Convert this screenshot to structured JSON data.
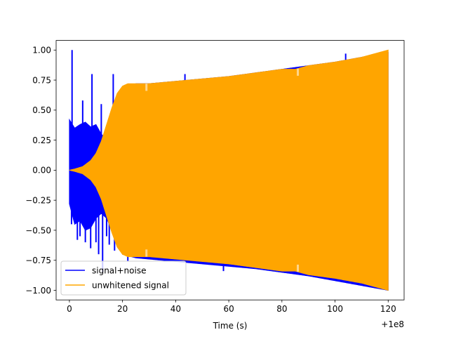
{
  "chart_data": {
    "type": "line",
    "title": "",
    "xlabel": "Time (s)",
    "ylabel": "",
    "x_offset_label": "+1e8",
    "xlim": [
      -5,
      126
    ],
    "ylim": [
      -1.08,
      1.08
    ],
    "x_ticks": [
      0,
      20,
      40,
      60,
      80,
      100,
      120
    ],
    "x_tick_labels": [
      "0",
      "20",
      "40",
      "60",
      "80",
      "100",
      "120"
    ],
    "y_ticks": [
      -1.0,
      -0.75,
      -0.5,
      -0.25,
      0.0,
      0.25,
      0.5,
      0.75,
      1.0
    ],
    "y_tick_labels": [
      "−1.00",
      "−0.75",
      "−0.50",
      "−0.25",
      "0.00",
      "0.25",
      "0.50",
      "0.75",
      "1.00"
    ],
    "grid": false,
    "legend_position": "lower-left",
    "series": [
      {
        "name": "signal+noise",
        "color": "#0000ff",
        "envelope_x": [
          0,
          2,
          4,
          6,
          8,
          10,
          12,
          14,
          16,
          18,
          20,
          25,
          30,
          40,
          50,
          60,
          70,
          80,
          90,
          100,
          110,
          120
        ],
        "envelope_upper": [
          0.42,
          0.35,
          0.38,
          0.4,
          0.36,
          0.38,
          0.3,
          0.26,
          0.3,
          0.45,
          0.62,
          0.72,
          0.72,
          0.74,
          0.76,
          0.78,
          0.81,
          0.84,
          0.87,
          0.9,
          0.94,
          0.98
        ],
        "envelope_lower": [
          -0.28,
          -0.45,
          -0.42,
          -0.5,
          -0.48,
          -0.4,
          -0.36,
          -0.4,
          -0.5,
          -0.62,
          -0.7,
          -0.73,
          -0.74,
          -0.76,
          -0.78,
          -0.8,
          -0.82,
          -0.85,
          -0.88,
          -0.92,
          -0.96,
          -1.0
        ],
        "spikes": [
          {
            "x": 0.2,
            "y": 0.41
          },
          {
            "x": 1.0,
            "y": 1.0
          },
          {
            "x": 0.8,
            "y": -0.45
          },
          {
            "x": 3.0,
            "y": -0.58
          },
          {
            "x": 4.0,
            "y": -0.55
          },
          {
            "x": 5.0,
            "y": 0.58
          },
          {
            "x": 6.0,
            "y": -0.6
          },
          {
            "x": 8.0,
            "y": -0.65
          },
          {
            "x": 8.5,
            "y": 0.8
          },
          {
            "x": 10.0,
            "y": -0.6
          },
          {
            "x": 11.0,
            "y": -0.7
          },
          {
            "x": 12.0,
            "y": 0.55
          },
          {
            "x": 12.5,
            "y": -0.85
          },
          {
            "x": 14.0,
            "y": -0.55
          },
          {
            "x": 15.0,
            "y": -0.62
          },
          {
            "x": 16.5,
            "y": 0.8
          },
          {
            "x": 17.0,
            "y": -0.67
          },
          {
            "x": 22.0,
            "y": -0.76
          },
          {
            "x": 43.5,
            "y": 0.8
          },
          {
            "x": 58.0,
            "y": -0.84
          },
          {
            "x": 104.0,
            "y": 0.97
          }
        ]
      },
      {
        "name": "unwhitened signal",
        "color": "#ffa500",
        "envelope_x": [
          0,
          2,
          5,
          8,
          10,
          12,
          14,
          16,
          18,
          20,
          22,
          25,
          30,
          40,
          50,
          60,
          70,
          80,
          85,
          90,
          100,
          110,
          120
        ],
        "envelope_upper": [
          0.0,
          0.01,
          0.03,
          0.08,
          0.14,
          0.24,
          0.38,
          0.52,
          0.64,
          0.7,
          0.72,
          0.72,
          0.72,
          0.74,
          0.76,
          0.78,
          0.81,
          0.84,
          0.84,
          0.87,
          0.9,
          0.94,
          1.0
        ],
        "envelope_lower": [
          0.0,
          -0.01,
          -0.03,
          -0.08,
          -0.14,
          -0.24,
          -0.38,
          -0.52,
          -0.64,
          -0.7,
          -0.72,
          -0.72,
          -0.72,
          -0.74,
          -0.76,
          -0.78,
          -0.81,
          -0.84,
          -0.84,
          -0.87,
          -0.9,
          -0.94,
          -1.0
        ]
      }
    ]
  }
}
